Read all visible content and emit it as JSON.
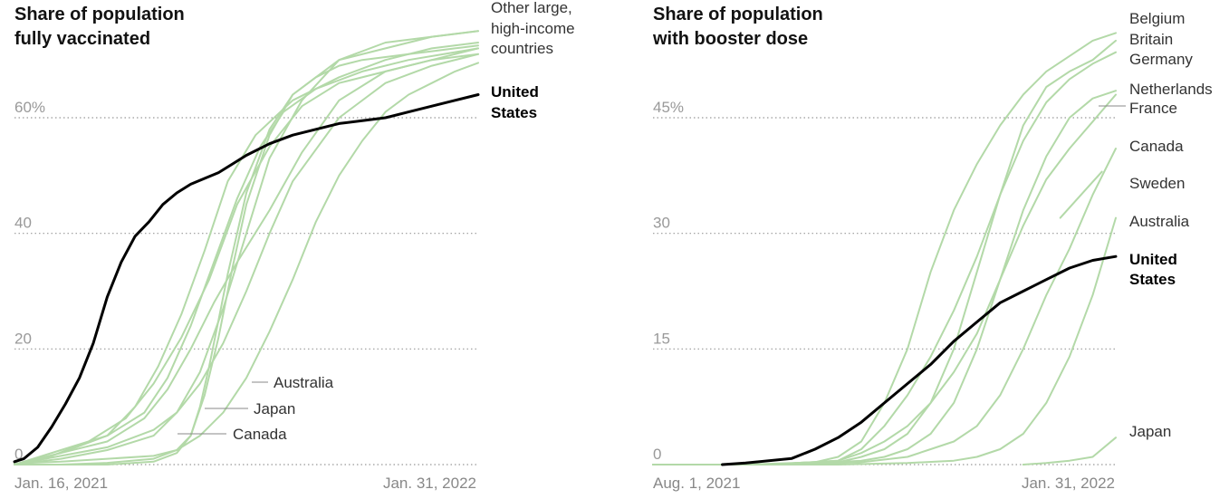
{
  "chart_data": [
    {
      "type": "line",
      "title": [
        "Share of population",
        "fully vaccinated"
      ],
      "x_start": "Jan. 16, 2021",
      "x_end": "Jan. 31, 2022",
      "y_ticks": [
        "0",
        "20",
        "40",
        "60%"
      ],
      "ylim": [
        0,
        75
      ],
      "grid": true,
      "peer_label": [
        "Other large,",
        "high-income",
        "countries"
      ],
      "us_label": [
        "United",
        "States"
      ],
      "series": [
        {
          "name": "United States",
          "highlight": true,
          "x": [
            0,
            0.02,
            0.05,
            0.08,
            0.11,
            0.14,
            0.17,
            0.2,
            0.23,
            0.26,
            0.29,
            0.32,
            0.35,
            0.38,
            0.41,
            0.44,
            0.47,
            0.5,
            0.55,
            0.6,
            0.65,
            0.7,
            0.75,
            0.8,
            0.85,
            0.9,
            0.95,
            1.0
          ],
          "y": [
            0.5,
            1,
            3,
            6.5,
            10.5,
            15,
            21,
            29,
            35,
            39.5,
            42,
            45,
            47,
            48.5,
            49.5,
            50.5,
            52,
            53.5,
            55.5,
            57,
            58,
            59,
            59.5,
            60,
            61,
            62,
            63,
            64
          ]
        },
        {
          "name": "Australia",
          "label_shown": true,
          "x": [
            0,
            0.1,
            0.2,
            0.3,
            0.35,
            0.4,
            0.45,
            0.5,
            0.55,
            0.6,
            0.65,
            0.7,
            0.75,
            0.8,
            0.85,
            0.9,
            0.95,
            1.0
          ],
          "y": [
            0,
            0,
            0.3,
            1,
            2.5,
            5,
            9,
            15,
            23,
            32,
            42,
            50,
            56,
            61,
            64,
            66,
            68,
            69.5
          ]
        },
        {
          "name": "Japan",
          "label_shown": true,
          "x": [
            0,
            0.2,
            0.3,
            0.35,
            0.38,
            0.41,
            0.44,
            0.47,
            0.5,
            0.55,
            0.6,
            0.65,
            0.7,
            0.75,
            0.8,
            0.85,
            0.9,
            0.95,
            1.0
          ],
          "y": [
            0,
            0,
            0.5,
            2,
            5,
            12,
            22,
            34,
            45,
            57,
            64,
            67,
            69,
            70,
            70.5,
            71,
            71.5,
            72,
            72.5
          ]
        },
        {
          "name": "Canada",
          "label_shown": true,
          "x": [
            0,
            0.1,
            0.2,
            0.3,
            0.35,
            0.38,
            0.4,
            0.42,
            0.44,
            0.46,
            0.48,
            0.5,
            0.55,
            0.6,
            0.65,
            0.7,
            0.8,
            0.9,
            1.0
          ],
          "y": [
            0.2,
            0.5,
            1,
            1.5,
            2.5,
            5,
            10,
            17,
            25,
            33,
            40,
            47,
            58,
            64,
            67,
            70,
            72,
            74,
            75
          ]
        },
        {
          "name": "",
          "x": [
            0,
            0.1,
            0.2,
            0.3,
            0.35,
            0.4,
            0.45,
            0.5,
            0.55,
            0.6,
            0.7,
            0.8,
            0.9,
            1.0
          ],
          "y": [
            0,
            1.5,
            3,
            6,
            9,
            14,
            21,
            30,
            40,
            49,
            60,
            66,
            69,
            71
          ]
        },
        {
          "name": "",
          "x": [
            0,
            0.1,
            0.2,
            0.28,
            0.33,
            0.38,
            0.43,
            0.48,
            0.55,
            0.62,
            0.7,
            0.8,
            0.9,
            1.0
          ],
          "y": [
            0,
            2,
            4,
            8,
            13,
            20,
            28,
            35,
            44,
            54,
            63,
            68,
            70,
            71
          ]
        },
        {
          "name": "",
          "x": [
            0,
            0.1,
            0.2,
            0.28,
            0.33,
            0.38,
            0.43,
            0.48,
            0.53,
            0.58,
            0.65,
            0.75,
            0.85,
            1.0
          ],
          "y": [
            0,
            2.5,
            5,
            9,
            15,
            24,
            35,
            46,
            55,
            61,
            65,
            68,
            70,
            72
          ]
        },
        {
          "name": "",
          "x": [
            0,
            0.1,
            0.2,
            0.26,
            0.31,
            0.36,
            0.41,
            0.46,
            0.52,
            0.6,
            0.7,
            0.8,
            0.9,
            1.0
          ],
          "y": [
            0,
            2,
            5,
            10,
            17,
            26,
            37,
            49,
            57,
            63,
            67,
            70,
            72,
            73
          ]
        },
        {
          "name": "",
          "x": [
            0,
            0.08,
            0.16,
            0.24,
            0.3,
            0.36,
            0.42,
            0.48,
            0.55,
            0.62,
            0.7,
            0.8,
            0.9,
            1.0
          ],
          "y": [
            0,
            1.5,
            4,
            8,
            14,
            22,
            32,
            45,
            55,
            62,
            66,
            68,
            70,
            72
          ]
        },
        {
          "name": "",
          "x": [
            0,
            0.1,
            0.2,
            0.3,
            0.35,
            0.4,
            0.45,
            0.5,
            0.55,
            0.62,
            0.7,
            0.8,
            0.9,
            1.0
          ],
          "y": [
            0,
            1,
            2.5,
            5,
            9,
            16,
            27,
            40,
            53,
            63,
            70,
            73,
            74,
            75
          ]
        }
      ]
    },
    {
      "type": "line",
      "title": [
        "Share of population",
        "with booster dose"
      ],
      "x_start": "Aug. 1, 2021",
      "x_end": "Jan. 31, 2022",
      "y_ticks": [
        "0",
        "15",
        "30",
        "45%"
      ],
      "ylim": [
        0,
        57
      ],
      "grid": true,
      "us_label": [
        "United",
        "States"
      ],
      "series": [
        {
          "name": "United States",
          "highlight": true,
          "x": [
            0.15,
            0.2,
            0.3,
            0.35,
            0.4,
            0.45,
            0.5,
            0.55,
            0.6,
            0.65,
            0.7,
            0.75,
            0.8,
            0.85,
            0.9,
            0.95,
            1.0
          ],
          "y": [
            0,
            0.2,
            0.8,
            2,
            3.5,
            5.5,
            8,
            10.5,
            13,
            16,
            18.5,
            21,
            22.5,
            24,
            25.5,
            26.5,
            27
          ]
        },
        {
          "name": "Belgium",
          "x": [
            0,
            0.2,
            0.35,
            0.4,
            0.45,
            0.5,
            0.55,
            0.6,
            0.65,
            0.7,
            0.75,
            0.8,
            0.85,
            0.9,
            0.95,
            1.0
          ],
          "y": [
            0,
            0,
            0.3,
            1,
            3,
            8,
            15,
            25,
            33,
            39,
            44,
            48,
            51,
            53,
            55,
            56
          ]
        },
        {
          "name": "Britain",
          "x": [
            0,
            0.25,
            0.4,
            0.45,
            0.5,
            0.55,
            0.6,
            0.65,
            0.7,
            0.75,
            0.8,
            0.85,
            0.9,
            0.95,
            1.0
          ],
          "y": [
            0,
            0,
            0.5,
            2,
            5,
            9,
            14,
            20,
            27,
            35,
            44,
            49,
            51,
            52.5,
            55
          ]
        },
        {
          "name": "Germany",
          "x": [
            0,
            0.25,
            0.4,
            0.45,
            0.5,
            0.55,
            0.6,
            0.65,
            0.7,
            0.75,
            0.8,
            0.85,
            0.9,
            0.95,
            1.0
          ],
          "y": [
            0,
            0,
            0.3,
            1,
            2,
            4,
            8,
            15,
            25,
            35,
            42,
            47,
            50,
            52,
            53.5
          ]
        },
        {
          "name": "Netherlands",
          "x": [
            0,
            0.3,
            0.45,
            0.5,
            0.55,
            0.6,
            0.65,
            0.7,
            0.75,
            0.8,
            0.85,
            0.9,
            0.95,
            1.0
          ],
          "y": [
            0,
            0,
            0.5,
            1,
            2,
            4,
            8,
            15,
            24,
            33,
            40,
            45,
            47.5,
            48.5
          ]
        },
        {
          "name": "France",
          "x": [
            0,
            0.25,
            0.4,
            0.45,
            0.5,
            0.55,
            0.6,
            0.65,
            0.7,
            0.75,
            0.8,
            0.85,
            0.9,
            0.95,
            1.0
          ],
          "y": [
            0,
            0,
            0.5,
            1.5,
            3,
            5,
            8,
            12,
            17,
            24,
            31,
            37,
            41,
            44.5,
            48
          ]
        },
        {
          "name": "Canada",
          "x": [
            0,
            0.3,
            0.45,
            0.55,
            0.6,
            0.65,
            0.7,
            0.75,
            0.8,
            0.85,
            0.9,
            0.95,
            1.0
          ],
          "y": [
            0,
            0,
            0.3,
            1,
            2,
            3,
            5,
            9,
            15,
            22,
            28,
            35,
            41
          ]
        },
        {
          "name": "Sweden",
          "x": [
            0.88,
            0.91,
            0.94,
            0.97
          ],
          "y": [
            32,
            34,
            36,
            38
          ]
        },
        {
          "name": "Australia",
          "x": [
            0,
            0.4,
            0.55,
            0.65,
            0.7,
            0.75,
            0.8,
            0.85,
            0.9,
            0.95,
            1.0
          ],
          "y": [
            0,
            0,
            0.2,
            0.5,
            1,
            2,
            4,
            8,
            14,
            22,
            32
          ]
        },
        {
          "name": "Japan",
          "x": [
            0.8,
            0.85,
            0.9,
            0.95,
            1.0
          ],
          "y": [
            0,
            0.2,
            0.5,
            1,
            3.5
          ]
        }
      ]
    }
  ]
}
